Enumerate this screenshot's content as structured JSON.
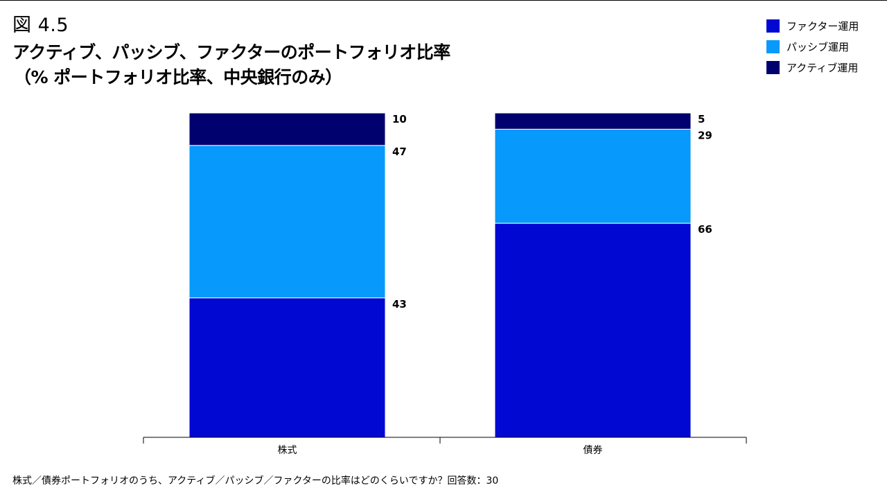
{
  "figure_label": "図 4.5",
  "chart_data": {
    "type": "bar",
    "stacked": true,
    "title": "アクティブ、パッシブ、ファクターのポートフォリオ比率",
    "subtitle": "（% ポートフォリオ比率、中央銀行のみ）",
    "categories": [
      "株式",
      "債券"
    ],
    "series": [
      {
        "name": "ファクター運用",
        "values": [
          43,
          66
        ],
        "color": "#0008D2"
      },
      {
        "name": "パッシブ運用",
        "values": [
          47,
          29
        ],
        "color": "#0799FB"
      },
      {
        "name": "アクティブ運用",
        "values": [
          10,
          5
        ],
        "color": "#00006F"
      }
    ],
    "legend_order": [
      "ファクター運用",
      "パッシブ運用",
      "アクティブ運用"
    ],
    "legend_position": "top-right",
    "ylim": [
      0,
      100
    ],
    "xlabel": "",
    "ylabel": "",
    "grid": false
  },
  "footnote": "株式／債券ポートフォリオのうち、アクティブ／パッシブ／ファクターの比率はどのくらいですか？回答数：30"
}
